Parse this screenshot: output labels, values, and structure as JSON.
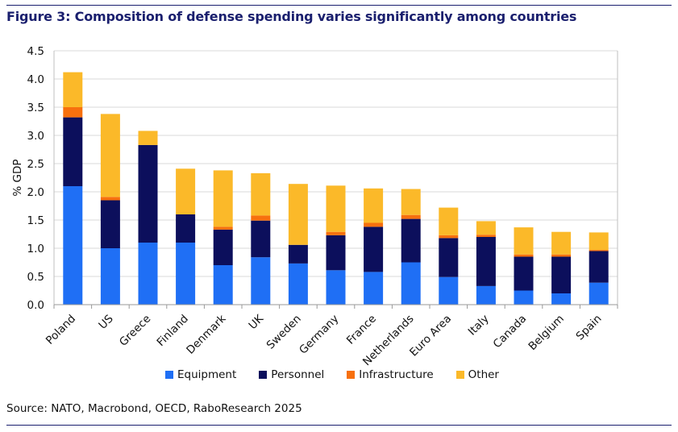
{
  "figure": {
    "title": "Figure 3: Composition of defense spending varies significantly among countries",
    "source": "Source: NATO, Macrobond, OECD, RaboResearch 2025"
  },
  "colors": {
    "equipment": "#1f6ff5",
    "personnel": "#0c0f5c",
    "infrastructure": "#f7700e",
    "other": "#fbb929",
    "rule": "#1a1f6e",
    "grid": "#d9d9d9"
  },
  "chart_data": {
    "type": "bar",
    "stacked": true,
    "ylabel": "% GDP",
    "xlabel": "",
    "ylim": [
      0,
      4.5
    ],
    "yticks": [
      "0.0",
      "0.5",
      "1.0",
      "1.5",
      "2.0",
      "2.5",
      "3.0",
      "3.5",
      "4.0",
      "4.5"
    ],
    "grid": true,
    "legend_position": "bottom",
    "categories": [
      "Poland",
      "US",
      "Greece",
      "Finland",
      "Denmark",
      "UK",
      "Sweden",
      "Germany",
      "France",
      "Netherlands",
      "Euro Area",
      "Italy",
      "Canada",
      "Belgium",
      "Spain"
    ],
    "series": [
      {
        "name": "Equipment",
        "color": "#1f6ff5",
        "values": [
          2.1,
          1.0,
          1.1,
          1.1,
          0.7,
          0.84,
          0.73,
          0.61,
          0.58,
          0.75,
          0.49,
          0.33,
          0.25,
          0.2,
          0.39
        ]
      },
      {
        "name": "Personnel",
        "color": "#0c0f5c",
        "values": [
          1.22,
          0.85,
          1.73,
          0.5,
          0.63,
          0.65,
          0.33,
          0.62,
          0.8,
          0.77,
          0.69,
          0.87,
          0.6,
          0.65,
          0.56
        ]
      },
      {
        "name": "Infrastructure",
        "color": "#f7700e",
        "values": [
          0.18,
          0.06,
          0.0,
          0.0,
          0.05,
          0.09,
          0.0,
          0.06,
          0.07,
          0.07,
          0.05,
          0.04,
          0.04,
          0.04,
          0.02
        ]
      },
      {
        "name": "Other",
        "color": "#fbb929",
        "values": [
          0.62,
          1.47,
          0.25,
          0.81,
          1.0,
          0.75,
          1.08,
          0.82,
          0.61,
          0.46,
          0.49,
          0.24,
          0.48,
          0.4,
          0.31
        ]
      }
    ]
  }
}
